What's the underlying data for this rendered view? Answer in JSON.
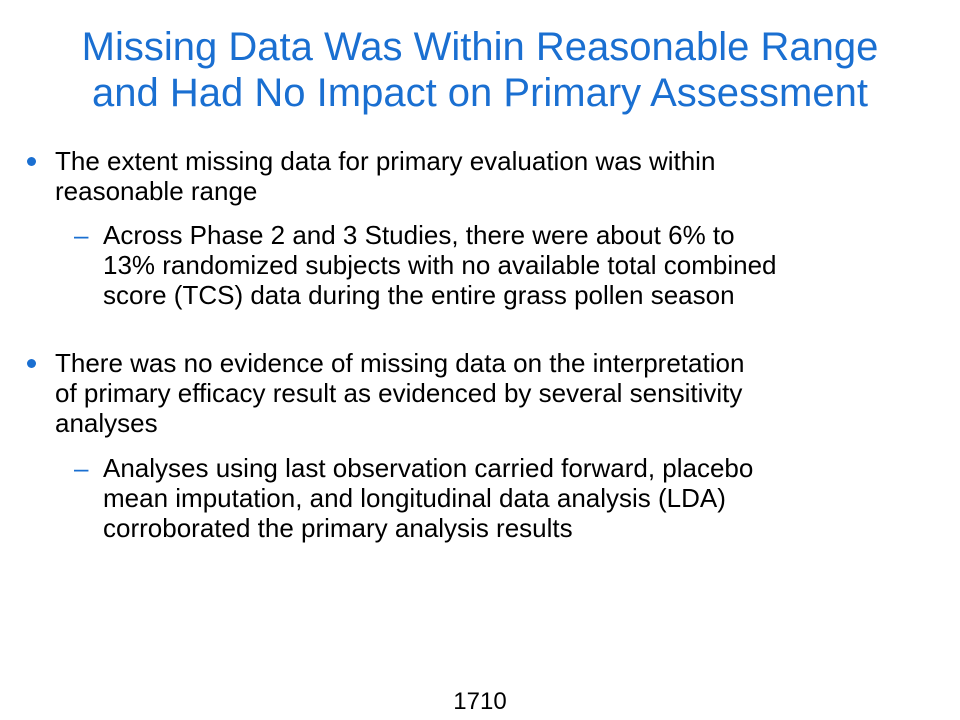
{
  "title": {
    "lines": [
      "Missing Data Was Within Reasonable Range",
      "and Had No Impact on Primary Assessment"
    ]
  },
  "bullets": [
    {
      "lines": [
        "The extent missing data for primary evaluation was within",
        "reasonable range"
      ],
      "sub": {
        "dash": "–",
        "lines": [
          "Across Phase 2 and 3 Studies, there were about 6% to",
          "13% randomized subjects with no available total combined",
          "score (TCS) data during the entire grass pollen season"
        ]
      }
    },
    {
      "lines": [
        "There was no evidence of missing data on the interpretation",
        "of primary efficacy result as evidenced by several sensitivity",
        "analyses"
      ],
      "sub": {
        "dash": "–",
        "lines": [
          "Analyses using last observation carried forward, placebo",
          "mean imputation, and longitudinal data analysis (LDA)",
          "corroborated the primary analysis results"
        ]
      }
    }
  ],
  "page_number": "1710",
  "colors": {
    "accent": "#1a6fd1",
    "text": "#000000",
    "background": "#ffffff"
  }
}
